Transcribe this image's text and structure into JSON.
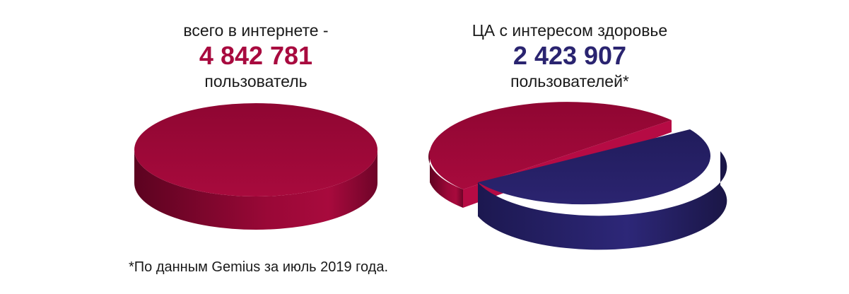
{
  "chart_data": [
    {
      "type": "pie",
      "title_line1": "всего в интернете -",
      "value_text": "4 842 781",
      "title_line2": "пользователь",
      "slices": [
        {
          "value": 4842781,
          "color": "#a8083b"
        }
      ]
    },
    {
      "type": "pie",
      "title_line1": "ЦА с интересом здоровье",
      "value_text": "2 423 907",
      "title_line2": "пользователей*",
      "slices": [
        {
          "value": 2418874,
          "color": "#a8083b"
        },
        {
          "value": 2423907,
          "color": "#2b2470"
        }
      ]
    }
  ],
  "footnote": "*По данным Gemius за июль 2019 года.",
  "colors": {
    "crimson": "#a8083b",
    "navy": "#2b2470"
  }
}
